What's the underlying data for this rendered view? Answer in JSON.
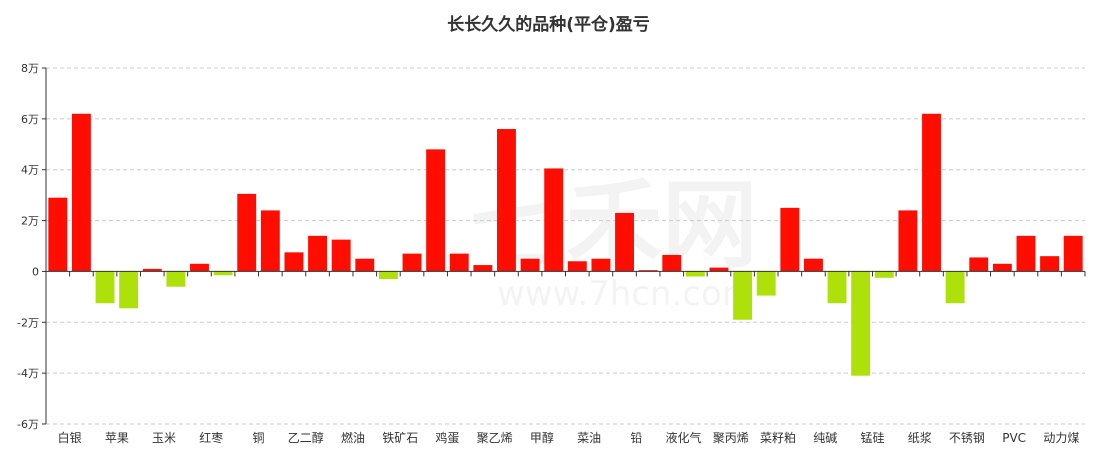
{
  "chart_data": {
    "type": "bar",
    "title": "长长久久的品种(平仓)盈亏",
    "xlabel": "",
    "ylabel": "",
    "ylim": [
      -60000,
      80000
    ],
    "yticks": [
      -60000,
      -40000,
      -20000,
      0,
      20000,
      40000,
      60000,
      80000
    ],
    "ytick_labels": [
      "-6万",
      "-4万",
      "-2万",
      "0",
      "2万",
      "4万",
      "6万",
      "8万"
    ],
    "grid": true,
    "legend": "none",
    "positive_color": "#ff0d00",
    "negative_color": "#aee00a",
    "categories": [
      "白银",
      "",
      "苹果",
      "",
      "玉米",
      "",
      "红枣",
      "",
      "铜",
      "",
      "乙二醇",
      "",
      "燃油",
      "",
      "铁矿石",
      "",
      "鸡蛋",
      "",
      "聚乙烯",
      "",
      "甲醇",
      "",
      "菜油",
      "",
      "铅",
      "",
      "液化气",
      "",
      "聚丙烯",
      "",
      "菜籽粕",
      "",
      "纯碱",
      "",
      "锰硅",
      "",
      "纸浆",
      "",
      "不锈钢",
      "",
      "PVC",
      "",
      "动力煤",
      ""
    ],
    "values": [
      29000,
      62000,
      -12500,
      -14500,
      1000,
      -6000,
      3000,
      -1500,
      30500,
      24000,
      7500,
      14000,
      12500,
      5000,
      -3000,
      7000,
      48000,
      7000,
      2500,
      56000,
      5000,
      40500,
      4000,
      5000,
      23000,
      500,
      6500,
      -2000,
      1500,
      -19000,
      -9500,
      25000,
      5000,
      -12500,
      -41000,
      -2500,
      24000,
      62000,
      -12500,
      5500,
      3000,
      14000,
      6000,
      14000
    ]
  },
  "watermark": {
    "brand_text": "七禾网",
    "url_text": "www.7hcn.com"
  }
}
